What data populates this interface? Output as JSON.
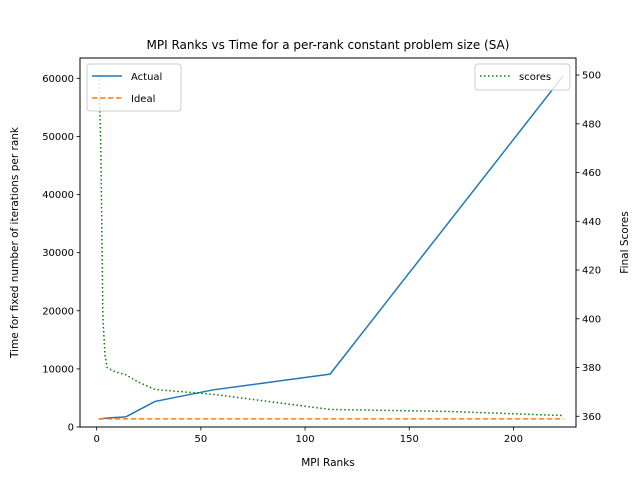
{
  "chart_data": {
    "type": "line",
    "title": "MPI Ranks vs Time for a per-rank constant problem size (SA)",
    "xlabel": "MPI Ranks",
    "ylabel": "Time for fixed number of iterations per rank",
    "y2label": "Final Scores",
    "xlim": [
      -8,
      230
    ],
    "ylim": [
      0,
      63500
    ],
    "y2lim": [
      355.6,
      507
    ],
    "xticks": [
      0,
      50,
      100,
      150,
      200
    ],
    "yticks": [
      0,
      10000,
      20000,
      30000,
      40000,
      50000,
      60000
    ],
    "y2ticks": [
      360,
      380,
      400,
      420,
      440,
      460,
      480,
      500
    ],
    "grid": false,
    "legend_left": {
      "placement": "upper-left",
      "entries": [
        "Actual",
        "Ideal"
      ]
    },
    "legend_right": {
      "placement": "upper-right",
      "entries": [
        "scores"
      ]
    },
    "series": [
      {
        "name": "Actual",
        "axis": "left",
        "style": "solid",
        "color": "#1f77b4",
        "points": [
          [
            1,
            1400
          ],
          [
            2,
            1420
          ],
          [
            4,
            1500
          ],
          [
            7,
            1600
          ],
          [
            14,
            1750
          ],
          [
            28,
            4400
          ],
          [
            56,
            6400
          ],
          [
            112,
            9100
          ],
          [
            224,
            60500
          ]
        ]
      },
      {
        "name": "Ideal",
        "axis": "left",
        "style": "dashed",
        "color": "#ff7f0e",
        "points": [
          [
            1,
            1400
          ],
          [
            224,
            1400
          ]
        ]
      },
      {
        "name": "scores",
        "axis": "right",
        "style": "dotted",
        "color": "#008000",
        "points": [
          [
            1,
            500
          ],
          [
            2,
            470
          ],
          [
            3,
            400
          ],
          [
            4,
            385
          ],
          [
            5,
            380
          ],
          [
            7,
            379
          ],
          [
            10,
            378
          ],
          [
            14,
            377
          ],
          [
            20,
            374
          ],
          [
            28,
            371
          ],
          [
            56,
            369
          ],
          [
            112,
            362.8
          ],
          [
            168,
            362
          ],
          [
            224,
            360.3
          ]
        ]
      }
    ]
  }
}
